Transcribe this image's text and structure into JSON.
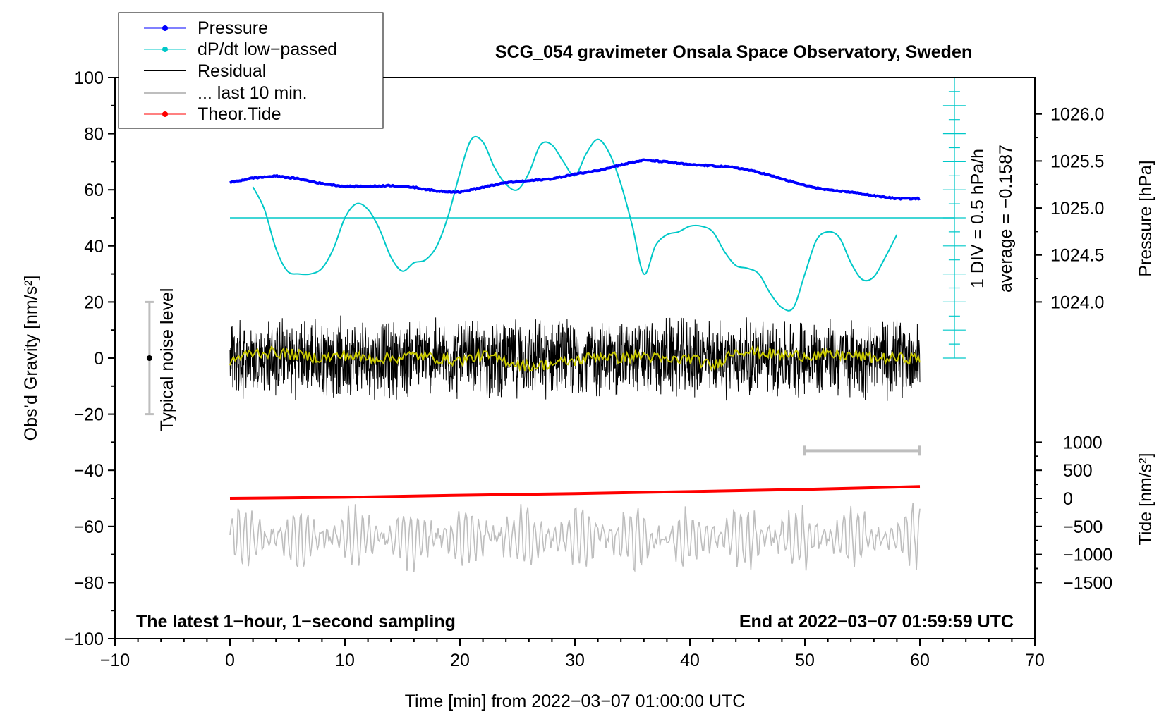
{
  "chart_data": {
    "type": "line",
    "title": "SCG_054 gravimeter Onsala Space Observatory, Sweden",
    "xlabel": "Time [min] from 2022−03−07 01:00:00 UTC",
    "ylabel": "Obs’d Gravity [nm/s²]",
    "ylabel_right_pressure": "Pressure [hPa]",
    "ylabel_right_tide": "Tide [nm/s²]",
    "xlim": [
      -10,
      70
    ],
    "ylim": [
      -100,
      100
    ],
    "x_ticks": [
      -10,
      0,
      10,
      20,
      30,
      40,
      50,
      60,
      70
    ],
    "x_tick_labels": [
      "−10",
      "0",
      "10",
      "20",
      "30",
      "40",
      "50",
      "60",
      "70"
    ],
    "y_ticks": [
      -100,
      -80,
      -60,
      -40,
      -20,
      0,
      20,
      40,
      60,
      80,
      100
    ],
    "y_tick_labels": [
      "−100",
      "−80",
      "−60",
      "−40",
      "−20",
      "0",
      "20",
      "40",
      "60",
      "80",
      "100"
    ],
    "pressure_axis": {
      "ticks": [
        1024.0,
        1024.5,
        1025.0,
        1025.5,
        1026.0
      ],
      "tick_labels": [
        "1024.0",
        "1024.5",
        "1025.0",
        "1025.5",
        "1026.0"
      ],
      "y_at_1024": 20,
      "y_per_hPa": 33.5
    },
    "tide_axis": {
      "ticks": [
        -1500,
        -1000,
        -500,
        0,
        500,
        1000
      ],
      "tick_labels": [
        "−1500",
        "−1000",
        "−500",
        "0",
        "500",
        "1000"
      ],
      "y_at_0": -50,
      "y_per_nm": 0.02
    },
    "legend": {
      "placement": "top-left",
      "entries": [
        {
          "label": "Pressure",
          "color": "#0000ff",
          "marker": true
        },
        {
          "label": "dP/dt low−passed",
          "color": "#00c8c8",
          "marker": true
        },
        {
          "label": "Residual",
          "color": "#000000",
          "marker": false
        },
        {
          "label": "... last 10 min.",
          "color": "#bebebe",
          "marker": false
        },
        {
          "label": "Theor.Tide",
          "color": "#ff0000",
          "marker": true
        }
      ]
    },
    "dpdt_scale": {
      "x": 63,
      "y_range": [
        0,
        100
      ],
      "zero_line_y": 50,
      "label_line1": "1 DIV = 0.5 hPa/h",
      "label_line2": "average = −0.1587"
    },
    "noise_bar": {
      "x": -7,
      "y_center": 0,
      "y_range": [
        -20,
        20
      ],
      "label": "Typical noise level"
    },
    "last10_bar": {
      "x_range": [
        50,
        60
      ],
      "y": -33
    },
    "annotations": {
      "bottom_left": "The latest 1−hour, 1−second sampling",
      "bottom_right": "End at 2022−03−07 01:59:59 UTC"
    },
    "series": [
      {
        "name": "Pressure",
        "color": "#0000ff",
        "x": [
          0,
          2,
          4,
          6,
          8,
          10,
          12,
          14,
          16,
          18,
          20,
          22,
          24,
          26,
          28,
          30,
          32,
          34,
          36,
          38,
          40,
          42,
          44,
          46,
          48,
          50,
          52,
          54,
          56,
          58,
          60
        ],
        "y_hpa": [
          1025.27,
          1025.32,
          1025.34,
          1025.31,
          1025.26,
          1025.23,
          1025.23,
          1025.24,
          1025.22,
          1025.18,
          1025.17,
          1025.22,
          1025.27,
          1025.29,
          1025.31,
          1025.36,
          1025.4,
          1025.46,
          1025.51,
          1025.49,
          1025.46,
          1025.45,
          1025.43,
          1025.38,
          1025.31,
          1025.24,
          1025.19,
          1025.17,
          1025.13,
          1025.1,
          1025.1
        ]
      },
      {
        "name": "dP/dt low−passed",
        "color": "#00c8c8",
        "x": [
          2,
          3,
          4,
          5,
          6,
          7,
          8,
          9,
          10,
          11,
          12,
          13,
          14,
          15,
          16,
          17,
          18,
          19,
          20,
          21,
          22,
          23,
          24,
          25,
          26,
          27,
          28,
          29,
          30,
          31,
          32,
          33,
          34,
          35,
          36,
          37,
          38,
          39,
          40,
          41,
          42,
          43,
          44,
          45,
          46,
          47,
          48,
          49,
          50,
          51,
          52,
          53,
          54,
          55,
          56,
          57,
          58
        ],
        "y": [
          61,
          53,
          39,
          31,
          30,
          30,
          32,
          39,
          50,
          55,
          53,
          46,
          36,
          31,
          34,
          35,
          40,
          51,
          66,
          78,
          77,
          68,
          62,
          60,
          66,
          76,
          76,
          70,
          65,
          73,
          78,
          73,
          62,
          47,
          30,
          40,
          44,
          45,
          47,
          47,
          45,
          38,
          33,
          32,
          30,
          23,
          18,
          18,
          30,
          42,
          45,
          43,
          34,
          28,
          29,
          36,
          44
        ]
      },
      {
        "name": "Residual",
        "color": "#000000",
        "x_range": [
          0,
          60
        ],
        "amplitude": 13,
        "max_excursion": 25
      },
      {
        "name": "Residual smoothed",
        "color": "#c8c800",
        "x": [
          0,
          2,
          4,
          6,
          8,
          10,
          12,
          14,
          16,
          18,
          20,
          22,
          24,
          26,
          28,
          30,
          32,
          34,
          36,
          38,
          40,
          42,
          44,
          46,
          48,
          50,
          52,
          54,
          56,
          58,
          60
        ],
        "y": [
          -1,
          2,
          2,
          1,
          0,
          1,
          0,
          0,
          1,
          0,
          -1,
          1,
          -1,
          -3,
          -2,
          -1,
          1,
          0,
          1,
          -1,
          0,
          -3,
          3,
          2,
          1,
          1,
          1,
          1,
          0,
          0,
          0
        ]
      },
      {
        "name": "... last 10 min.",
        "color": "#bebebe",
        "x_range": [
          0,
          60
        ],
        "y_center": -64,
        "amplitude": 10
      },
      {
        "name": "Theor.Tide",
        "color": "#ff0000",
        "x": [
          0,
          10,
          20,
          30,
          40,
          50,
          60
        ],
        "y_tide": [
          0,
          20,
          55,
          85,
          120,
          160,
          210
        ]
      }
    ]
  }
}
